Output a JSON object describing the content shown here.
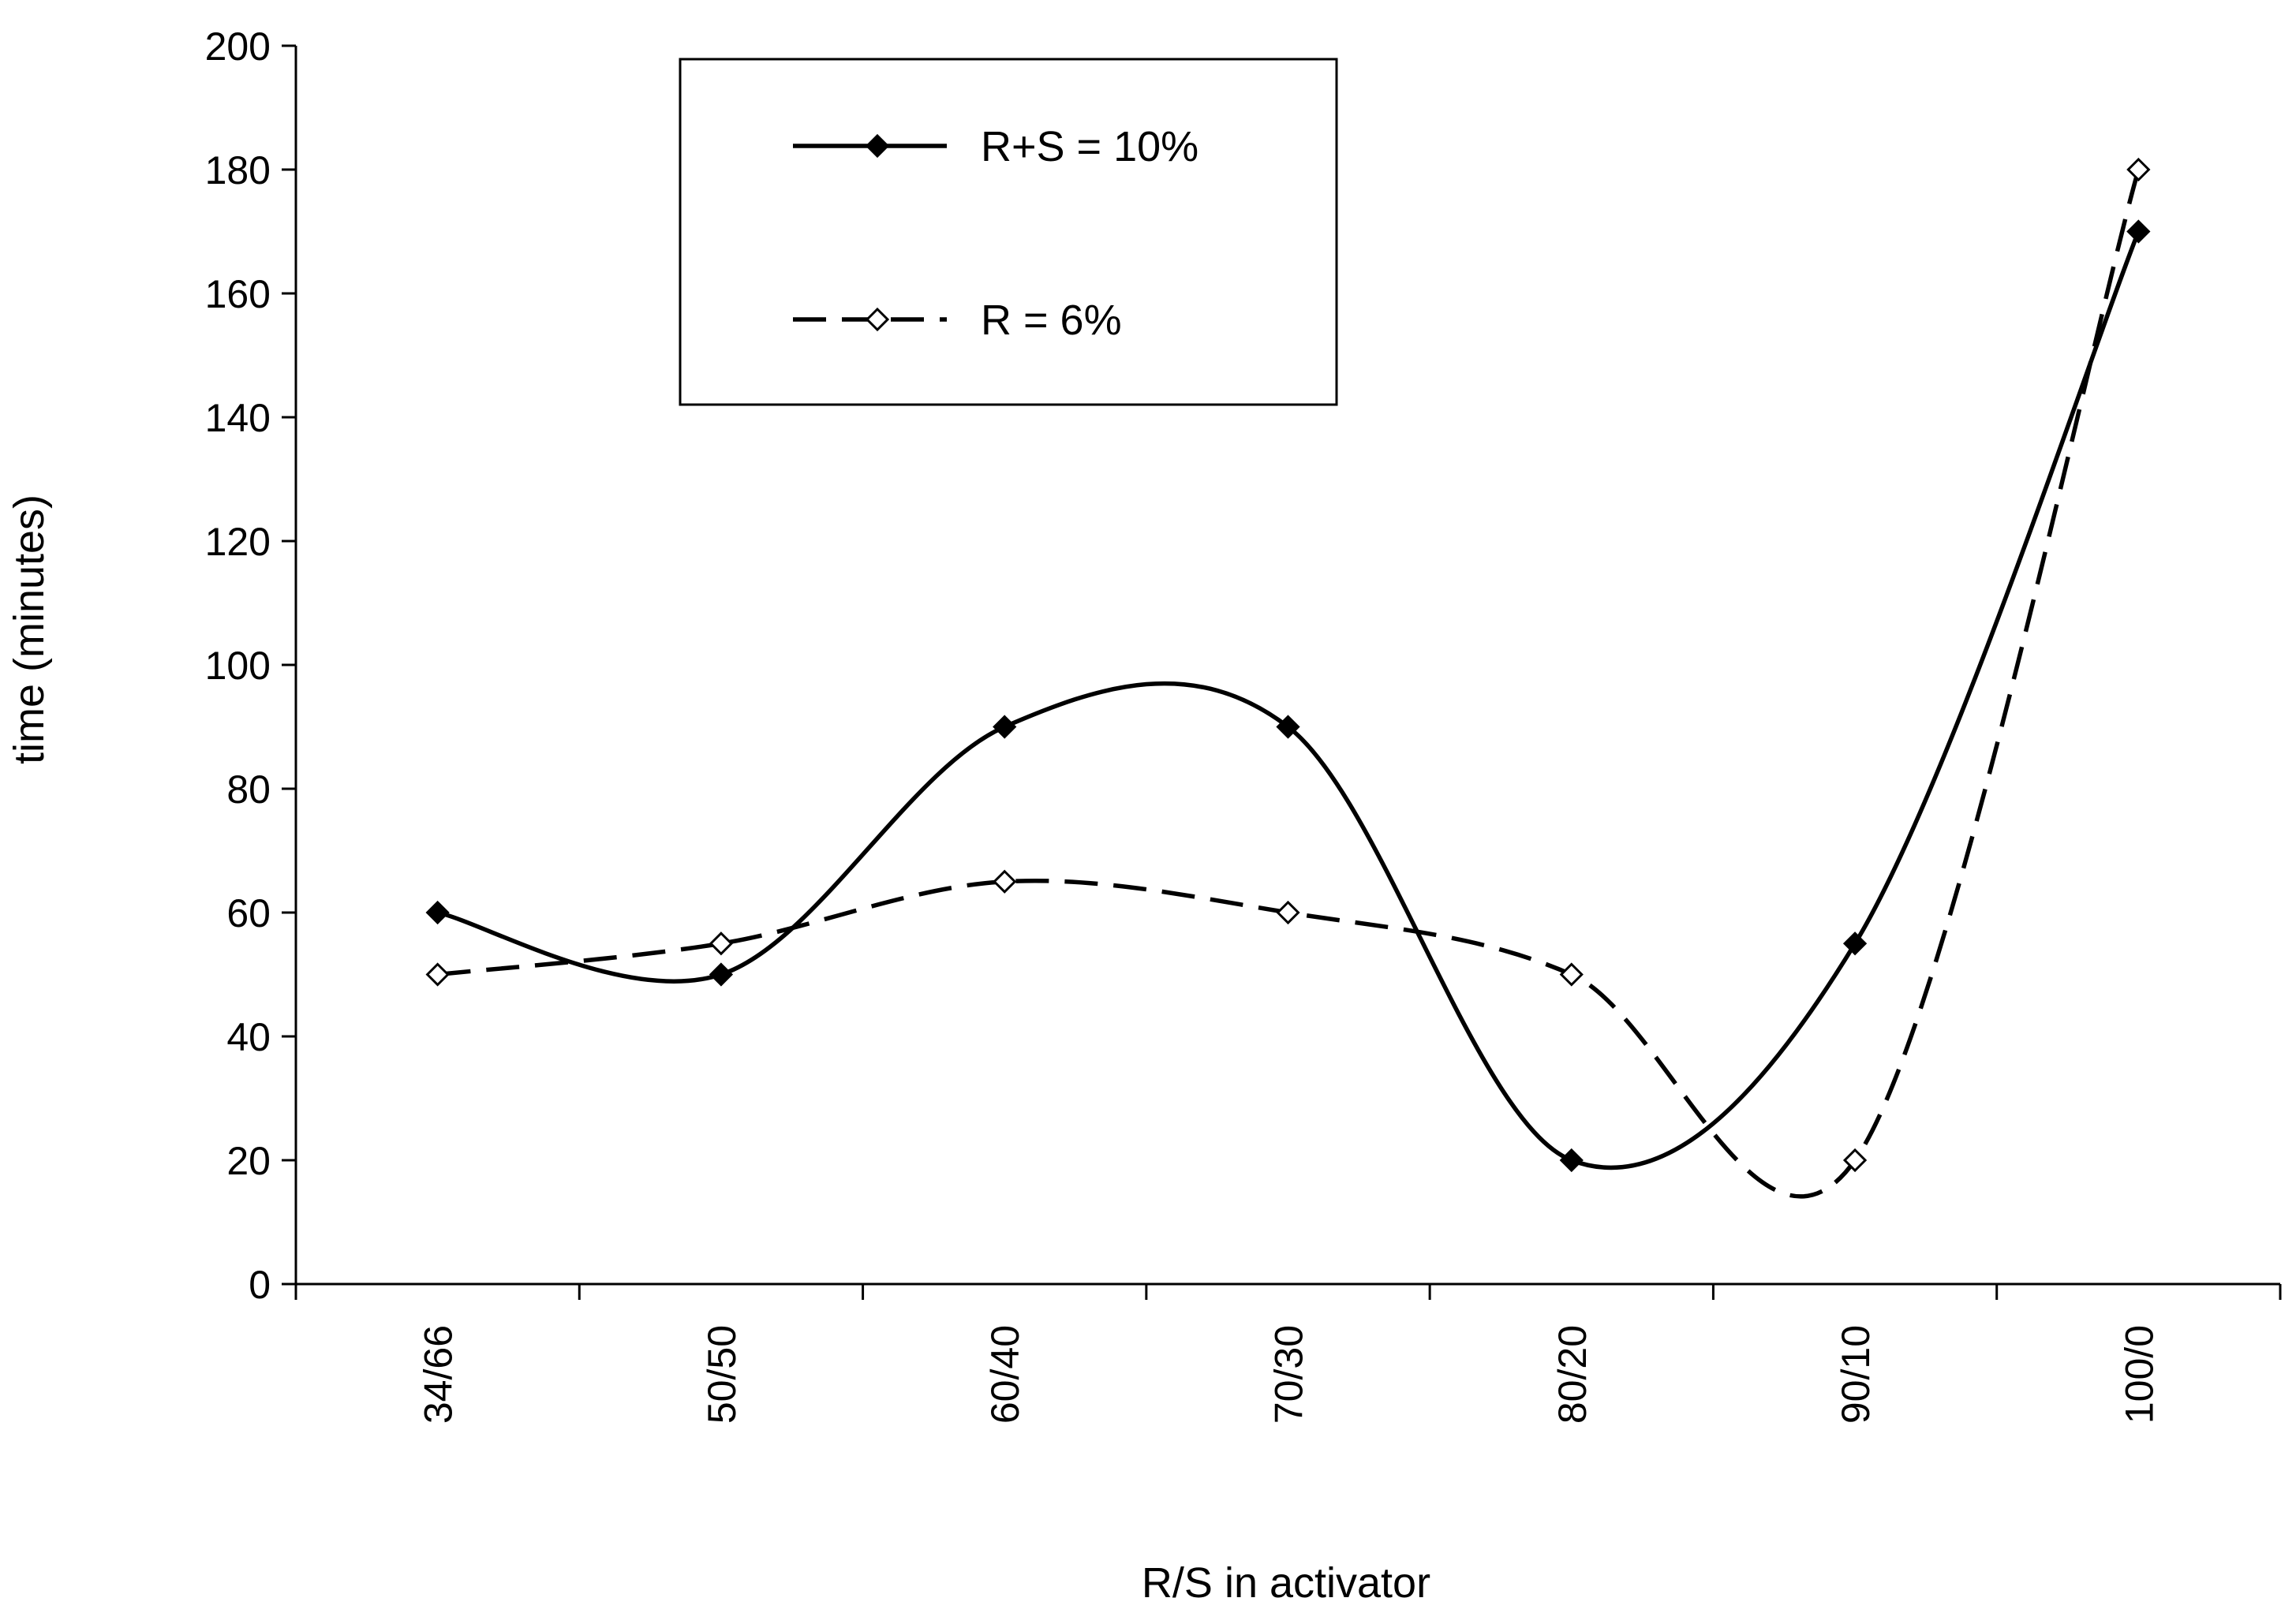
{
  "chart_data": {
    "type": "line",
    "categories": [
      "34/66",
      "50/50",
      "60/40",
      "70/30",
      "80/20",
      "90/10",
      "100/0"
    ],
    "series": [
      {
        "name": "R+S = 10%",
        "values": [
          60,
          50,
          90,
          90,
          20,
          55,
          170
        ],
        "line_style": "solid",
        "marker": "filled-diamond",
        "color": "#000000"
      },
      {
        "name": "R = 6%",
        "values": [
          50,
          55,
          65,
          60,
          50,
          20,
          180
        ],
        "line_style": "dashed",
        "marker": "hollow-diamond",
        "color": "#000000"
      }
    ],
    "xlabel": "R/S in activator",
    "ylabel": "time (minutes)",
    "ylim": [
      0,
      200
    ],
    "yticks": [
      0,
      20,
      40,
      60,
      80,
      100,
      120,
      140,
      160,
      180,
      200
    ],
    "grid": false,
    "legend_position": "top-center",
    "smoothed": true
  }
}
